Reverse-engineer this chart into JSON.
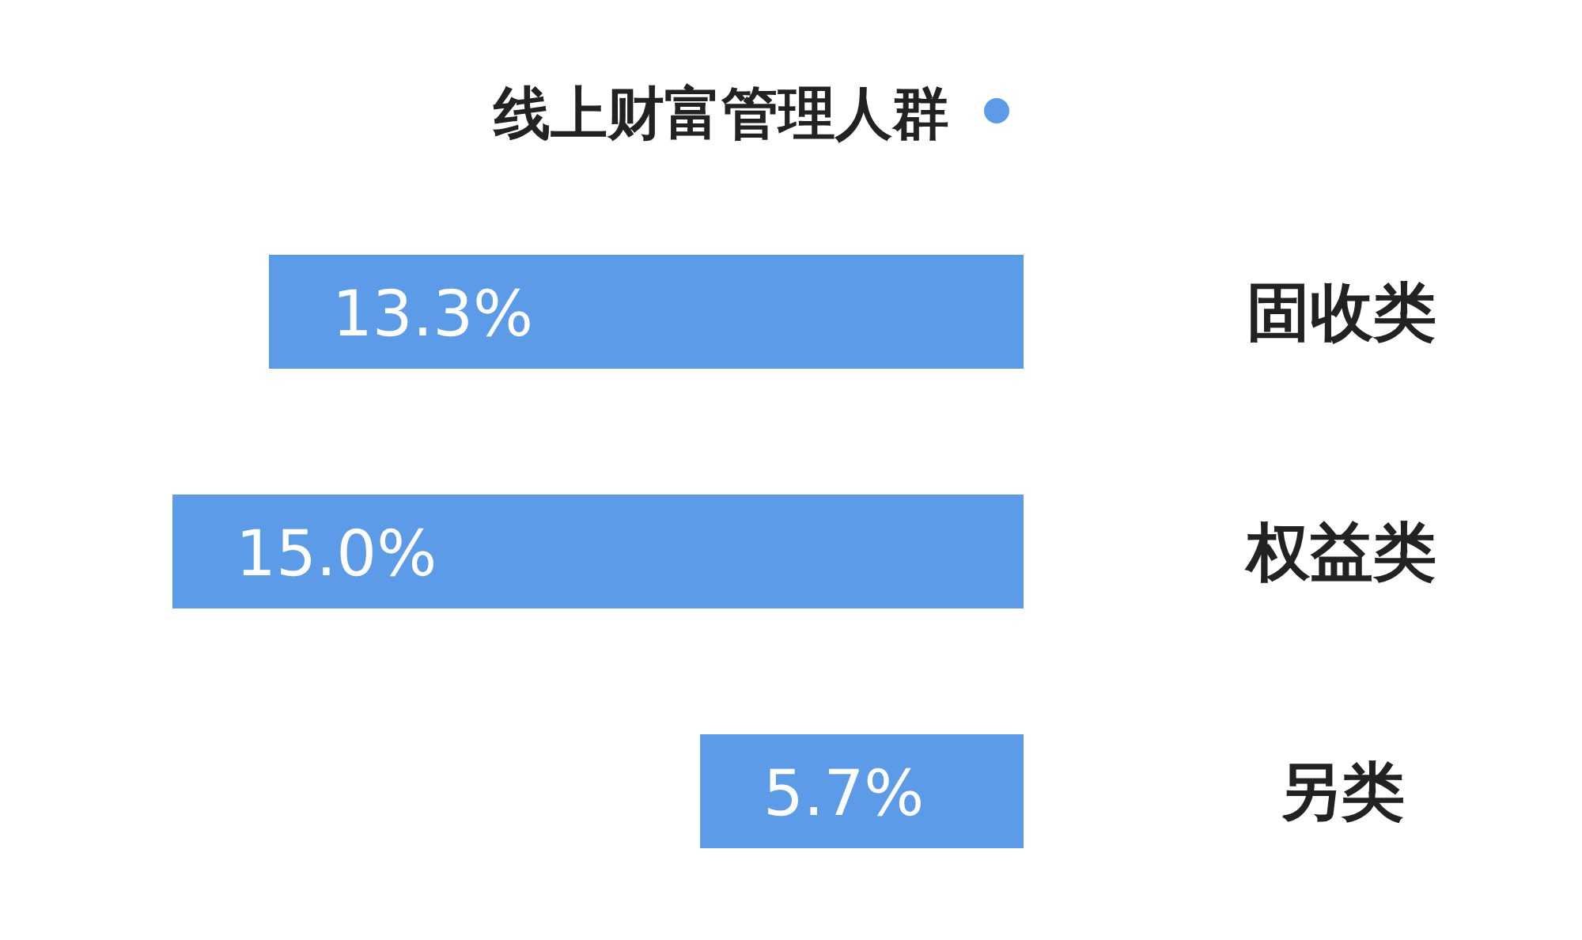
{
  "chart_data": {
    "type": "bar",
    "orientation": "horizontal",
    "categories": [
      "固收类",
      "权益类",
      "另类"
    ],
    "series": [
      {
        "name": "线上财富管理人群",
        "color": "#5b9be8",
        "values": [
          13.3,
          15.0,
          5.7
        ],
        "value_labels": [
          "13.3%",
          "15.0%",
          "5.7%"
        ]
      }
    ],
    "legend": "top right"
  }
}
